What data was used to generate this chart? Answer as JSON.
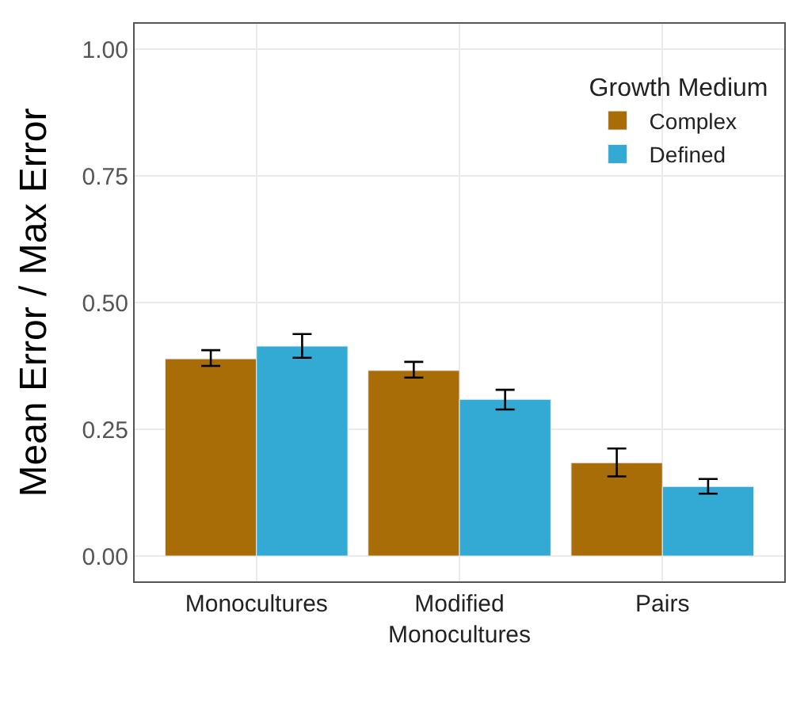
{
  "chart_data": {
    "type": "bar",
    "ylabel": "Mean Error / Max Error",
    "legend_title": "Growth Medium",
    "categories": [
      "Monocultures",
      "Modified\nMonocultures",
      "Pairs"
    ],
    "series": [
      {
        "name": "Complex",
        "color": "#a96d08",
        "values": [
          0.389,
          0.366,
          0.184
        ],
        "errors": [
          [
            0.375,
            0.406
          ],
          [
            0.352,
            0.383
          ],
          [
            0.157,
            0.212
          ]
        ]
      },
      {
        "name": "Defined",
        "color": "#33aad4",
        "values": [
          0.414,
          0.309,
          0.137
        ],
        "errors": [
          [
            0.391,
            0.438
          ],
          [
            0.289,
            0.328
          ],
          [
            0.123,
            0.152
          ]
        ]
      }
    ],
    "ylim": [
      -0.05,
      1.05
    ],
    "yticks": [
      {
        "value": 0,
        "label": "0.00"
      },
      {
        "value": 0.25,
        "label": "0.25"
      },
      {
        "value": 0.5,
        "label": "0.50"
      },
      {
        "value": 0.75,
        "label": "0.75"
      },
      {
        "value": 1,
        "label": "1.00"
      }
    ],
    "grid": true,
    "legend": "top right"
  }
}
